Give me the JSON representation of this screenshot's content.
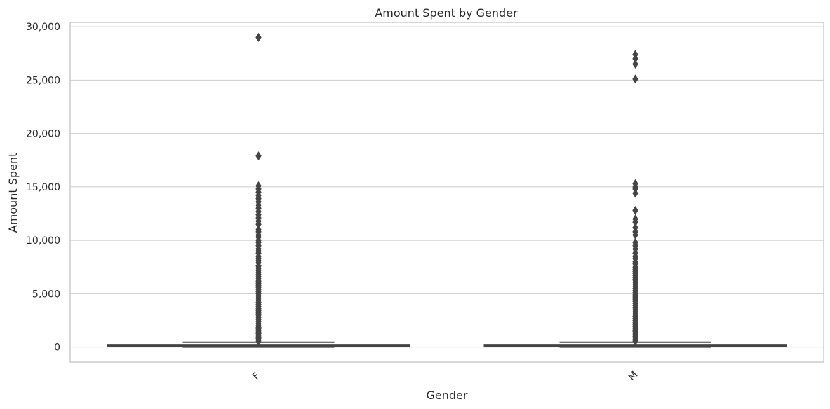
{
  "chart_data": {
    "type": "box",
    "title": "Amount Spent by Gender",
    "xlabel": "Gender",
    "ylabel": "Amount Spent",
    "ylim": [
      -1400,
      30400
    ],
    "yticks": [
      0,
      5000,
      10000,
      15000,
      20000,
      25000,
      30000
    ],
    "ytick_labels": [
      "0",
      "5,000",
      "10,000",
      "15,000",
      "20,000",
      "25,000",
      "30,000"
    ],
    "grid": "horizontal",
    "box_color": "#444444",
    "categories": [
      "F",
      "M"
    ],
    "boxes": [
      {
        "category": "F",
        "whisker_low": 0,
        "q1": 40,
        "median": 120,
        "q3": 230,
        "whisker_high": 450,
        "outliers": [
          29000,
          17900,
          15100,
          14800,
          14500,
          14200,
          13900,
          13600,
          13300,
          13000,
          12700,
          12400,
          12100,
          11800,
          11500,
          11000,
          10800,
          10500,
          10300,
          10000,
          9800,
          9500,
          9200,
          9000,
          8800,
          8500,
          8300,
          8100,
          7900,
          7600,
          7400,
          7200,
          7000,
          6800,
          6600,
          6400,
          6200,
          6000,
          5800,
          5600,
          5400,
          5200,
          5000,
          4800,
          4600,
          4400,
          4200,
          4000,
          3800,
          3600,
          3400,
          3200,
          3000,
          2800,
          2600,
          2400,
          2200,
          2000,
          1850,
          1700,
          1550,
          1400,
          1250,
          1100,
          950,
          800,
          650,
          500
        ]
      },
      {
        "category": "M",
        "whisker_low": 0,
        "q1": 40,
        "median": 120,
        "q3": 230,
        "whisker_high": 450,
        "outliers": [
          27400,
          27000,
          26500,
          25100,
          15300,
          15000,
          14800,
          14400,
          12800,
          12000,
          11700,
          11200,
          10800,
          10500,
          9800,
          9500,
          9200,
          8800,
          8500,
          8300,
          8000,
          7800,
          7500,
          7300,
          7100,
          6900,
          6700,
          6500,
          6300,
          6100,
          5900,
          5700,
          5500,
          5300,
          5100,
          4900,
          4700,
          4500,
          4300,
          4100,
          3900,
          3700,
          3500,
          3300,
          3100,
          2900,
          2700,
          2500,
          2300,
          2100,
          1900,
          1750,
          1600,
          1450,
          1300,
          1150,
          1000,
          850,
          700,
          550
        ]
      }
    ]
  }
}
